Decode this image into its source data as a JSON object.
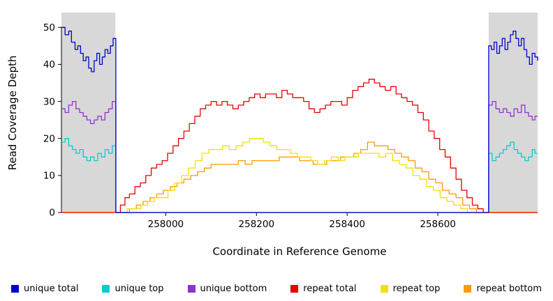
{
  "chart_data": {
    "type": "line",
    "title": "",
    "xlabel": "Coordinate in Reference Genome",
    "ylabel": "Read Coverage Depth",
    "xlim": [
      257770,
      258820
    ],
    "ylim": [
      0,
      54
    ],
    "xticks": [
      258000,
      258200,
      258400,
      258600
    ],
    "yticks": [
      0,
      10,
      20,
      30,
      40,
      50
    ],
    "grid": false,
    "legend_position": "bottom",
    "background": "#ffffff",
    "shaded_region_color": "#d8d8d8",
    "shaded_regions": [
      {
        "x0": 257770,
        "x1": 257889
      },
      {
        "x0": 258712,
        "x1": 258820
      }
    ],
    "series": [
      {
        "name": "unique total",
        "color": "#0000cd",
        "points": [
          [
            257770,
            50
          ],
          [
            257778,
            48
          ],
          [
            257786,
            49
          ],
          [
            257792,
            46
          ],
          [
            257800,
            44
          ],
          [
            257806,
            45
          ],
          [
            257812,
            43
          ],
          [
            257818,
            41
          ],
          [
            257824,
            42
          ],
          [
            257830,
            39
          ],
          [
            257836,
            38
          ],
          [
            257842,
            41
          ],
          [
            257848,
            43
          ],
          [
            257854,
            40
          ],
          [
            257860,
            42
          ],
          [
            257866,
            44
          ],
          [
            257872,
            43
          ],
          [
            257878,
            45
          ],
          [
            257884,
            47
          ],
          [
            257890,
            47
          ],
          [
            257890,
            0
          ],
          [
            258712,
            0
          ],
          [
            258712,
            45
          ],
          [
            258718,
            44
          ],
          [
            258724,
            46
          ],
          [
            258730,
            43
          ],
          [
            258736,
            45
          ],
          [
            258742,
            47
          ],
          [
            258748,
            44
          ],
          [
            258754,
            46
          ],
          [
            258760,
            48
          ],
          [
            258766,
            49
          ],
          [
            258772,
            47
          ],
          [
            258778,
            45
          ],
          [
            258784,
            47
          ],
          [
            258790,
            44
          ],
          [
            258796,
            42
          ],
          [
            258802,
            40
          ],
          [
            258808,
            43
          ],
          [
            258814,
            42
          ],
          [
            258820,
            41
          ]
        ]
      },
      {
        "name": "unique top",
        "color": "#00cdcd",
        "points": [
          [
            257770,
            19
          ],
          [
            257778,
            20
          ],
          [
            257786,
            18
          ],
          [
            257794,
            17
          ],
          [
            257802,
            16
          ],
          [
            257810,
            17
          ],
          [
            257818,
            15
          ],
          [
            257826,
            14
          ],
          [
            257834,
            15
          ],
          [
            257842,
            14
          ],
          [
            257850,
            16
          ],
          [
            257858,
            15
          ],
          [
            257866,
            17
          ],
          [
            257874,
            16
          ],
          [
            257882,
            18
          ],
          [
            257890,
            17
          ],
          [
            257890,
            0
          ],
          [
            258712,
            0
          ],
          [
            258712,
            16
          ],
          [
            258720,
            14
          ],
          [
            258728,
            15
          ],
          [
            258736,
            16
          ],
          [
            258744,
            17
          ],
          [
            258752,
            18
          ],
          [
            258760,
            19
          ],
          [
            258768,
            17
          ],
          [
            258776,
            16
          ],
          [
            258784,
            15
          ],
          [
            258792,
            14
          ],
          [
            258800,
            15
          ],
          [
            258808,
            17
          ],
          [
            258814,
            16
          ],
          [
            258820,
            16
          ]
        ]
      },
      {
        "name": "unique bottom",
        "color": "#9132cd",
        "points": [
          [
            257770,
            28
          ],
          [
            257778,
            27
          ],
          [
            257786,
            29
          ],
          [
            257794,
            30
          ],
          [
            257802,
            28
          ],
          [
            257810,
            27
          ],
          [
            257818,
            26
          ],
          [
            257826,
            25
          ],
          [
            257834,
            24
          ],
          [
            257842,
            25
          ],
          [
            257850,
            26
          ],
          [
            257858,
            25
          ],
          [
            257866,
            27
          ],
          [
            257874,
            28
          ],
          [
            257882,
            30
          ],
          [
            257890,
            30
          ],
          [
            257890,
            0
          ],
          [
            258712,
            0
          ],
          [
            258712,
            29
          ],
          [
            258720,
            30
          ],
          [
            258728,
            28
          ],
          [
            258736,
            27
          ],
          [
            258744,
            28
          ],
          [
            258752,
            27
          ],
          [
            258760,
            26
          ],
          [
            258768,
            28
          ],
          [
            258776,
            27
          ],
          [
            258784,
            29
          ],
          [
            258792,
            27
          ],
          [
            258800,
            26
          ],
          [
            258808,
            25
          ],
          [
            258814,
            26
          ],
          [
            258820,
            26
          ]
        ]
      },
      {
        "name": "repeat total",
        "color": "#e60000",
        "points": [
          [
            257770,
            0
          ],
          [
            257893,
            0
          ],
          [
            257900,
            2
          ],
          [
            257910,
            4
          ],
          [
            257920,
            5
          ],
          [
            257932,
            7
          ],
          [
            257944,
            8
          ],
          [
            257956,
            10
          ],
          [
            257968,
            12
          ],
          [
            257980,
            13
          ],
          [
            257992,
            14
          ],
          [
            258004,
            16
          ],
          [
            258016,
            18
          ],
          [
            258028,
            20
          ],
          [
            258040,
            22
          ],
          [
            258052,
            24
          ],
          [
            258064,
            26
          ],
          [
            258076,
            28
          ],
          [
            258088,
            29
          ],
          [
            258100,
            30
          ],
          [
            258112,
            29
          ],
          [
            258124,
            30
          ],
          [
            258136,
            29
          ],
          [
            258148,
            28
          ],
          [
            258160,
            29
          ],
          [
            258172,
            30
          ],
          [
            258184,
            31
          ],
          [
            258196,
            32
          ],
          [
            258208,
            31
          ],
          [
            258220,
            32
          ],
          [
            258232,
            32
          ],
          [
            258244,
            31
          ],
          [
            258256,
            33
          ],
          [
            258268,
            32
          ],
          [
            258280,
            31
          ],
          [
            258292,
            31
          ],
          [
            258304,
            30
          ],
          [
            258316,
            28
          ],
          [
            258328,
            27
          ],
          [
            258340,
            28
          ],
          [
            258352,
            29
          ],
          [
            258364,
            30
          ],
          [
            258376,
            30
          ],
          [
            258388,
            29
          ],
          [
            258400,
            31
          ],
          [
            258412,
            33
          ],
          [
            258424,
            34
          ],
          [
            258436,
            35
          ],
          [
            258448,
            36
          ],
          [
            258460,
            35
          ],
          [
            258472,
            34
          ],
          [
            258484,
            33
          ],
          [
            258496,
            34
          ],
          [
            258508,
            32
          ],
          [
            258520,
            31
          ],
          [
            258532,
            30
          ],
          [
            258544,
            29
          ],
          [
            258556,
            27
          ],
          [
            258568,
            25
          ],
          [
            258580,
            22
          ],
          [
            258592,
            20
          ],
          [
            258604,
            17
          ],
          [
            258616,
            15
          ],
          [
            258628,
            12
          ],
          [
            258640,
            9
          ],
          [
            258652,
            6
          ],
          [
            258664,
            4
          ],
          [
            258676,
            2
          ],
          [
            258688,
            1
          ],
          [
            258700,
            0
          ],
          [
            258820,
            0
          ]
        ]
      },
      {
        "name": "repeat top",
        "color": "#f2e000",
        "points": [
          [
            257770,
            0
          ],
          [
            257900,
            0
          ],
          [
            257915,
            1
          ],
          [
            257930,
            1
          ],
          [
            257945,
            2
          ],
          [
            257960,
            3
          ],
          [
            257975,
            4
          ],
          [
            257990,
            4
          ],
          [
            258005,
            6
          ],
          [
            258020,
            8
          ],
          [
            258035,
            10
          ],
          [
            258050,
            12
          ],
          [
            258065,
            14
          ],
          [
            258080,
            16
          ],
          [
            258095,
            17
          ],
          [
            258110,
            17
          ],
          [
            258125,
            18
          ],
          [
            258140,
            17
          ],
          [
            258155,
            18
          ],
          [
            258170,
            19
          ],
          [
            258185,
            20
          ],
          [
            258200,
            20
          ],
          [
            258215,
            19
          ],
          [
            258230,
            18
          ],
          [
            258245,
            17
          ],
          [
            258260,
            17
          ],
          [
            258275,
            16
          ],
          [
            258290,
            15
          ],
          [
            258305,
            15
          ],
          [
            258320,
            14
          ],
          [
            258335,
            13
          ],
          [
            258350,
            14
          ],
          [
            258365,
            15
          ],
          [
            258380,
            14
          ],
          [
            258395,
            15
          ],
          [
            258410,
            15
          ],
          [
            258425,
            16
          ],
          [
            258440,
            16
          ],
          [
            258455,
            16
          ],
          [
            258470,
            15
          ],
          [
            258485,
            16
          ],
          [
            258500,
            14
          ],
          [
            258515,
            13
          ],
          [
            258530,
            12
          ],
          [
            258545,
            10
          ],
          [
            258560,
            9
          ],
          [
            258575,
            7
          ],
          [
            258590,
            6
          ],
          [
            258605,
            4
          ],
          [
            258620,
            3
          ],
          [
            258635,
            2
          ],
          [
            258650,
            1
          ],
          [
            258665,
            0
          ],
          [
            258820,
            0
          ]
        ]
      },
      {
        "name": "repeat bottom",
        "color": "#ff9a00",
        "points": [
          [
            257770,
            0
          ],
          [
            257905,
            0
          ],
          [
            257920,
            1
          ],
          [
            257935,
            2
          ],
          [
            257950,
            3
          ],
          [
            257965,
            4
          ],
          [
            257980,
            5
          ],
          [
            257995,
            6
          ],
          [
            258010,
            7
          ],
          [
            258025,
            8
          ],
          [
            258040,
            9
          ],
          [
            258055,
            10
          ],
          [
            258070,
            11
          ],
          [
            258085,
            12
          ],
          [
            258100,
            13
          ],
          [
            258115,
            13
          ],
          [
            258130,
            13
          ],
          [
            258145,
            13
          ],
          [
            258160,
            14
          ],
          [
            258175,
            13
          ],
          [
            258190,
            14
          ],
          [
            258205,
            14
          ],
          [
            258220,
            14
          ],
          [
            258235,
            14
          ],
          [
            258250,
            15
          ],
          [
            258265,
            15
          ],
          [
            258280,
            15
          ],
          [
            258295,
            14
          ],
          [
            258310,
            14
          ],
          [
            258325,
            13
          ],
          [
            258340,
            13
          ],
          [
            258355,
            14
          ],
          [
            258370,
            14
          ],
          [
            258385,
            15
          ],
          [
            258400,
            15
          ],
          [
            258415,
            16
          ],
          [
            258430,
            17
          ],
          [
            258445,
            19
          ],
          [
            258460,
            18
          ],
          [
            258475,
            18
          ],
          [
            258490,
            17
          ],
          [
            258505,
            16
          ],
          [
            258520,
            15
          ],
          [
            258535,
            14
          ],
          [
            258550,
            12
          ],
          [
            258565,
            11
          ],
          [
            258580,
            9
          ],
          [
            258595,
            8
          ],
          [
            258610,
            6
          ],
          [
            258625,
            5
          ],
          [
            258640,
            4
          ],
          [
            258655,
            2
          ],
          [
            258670,
            1
          ],
          [
            258685,
            0
          ],
          [
            258820,
            0
          ]
        ]
      }
    ]
  }
}
